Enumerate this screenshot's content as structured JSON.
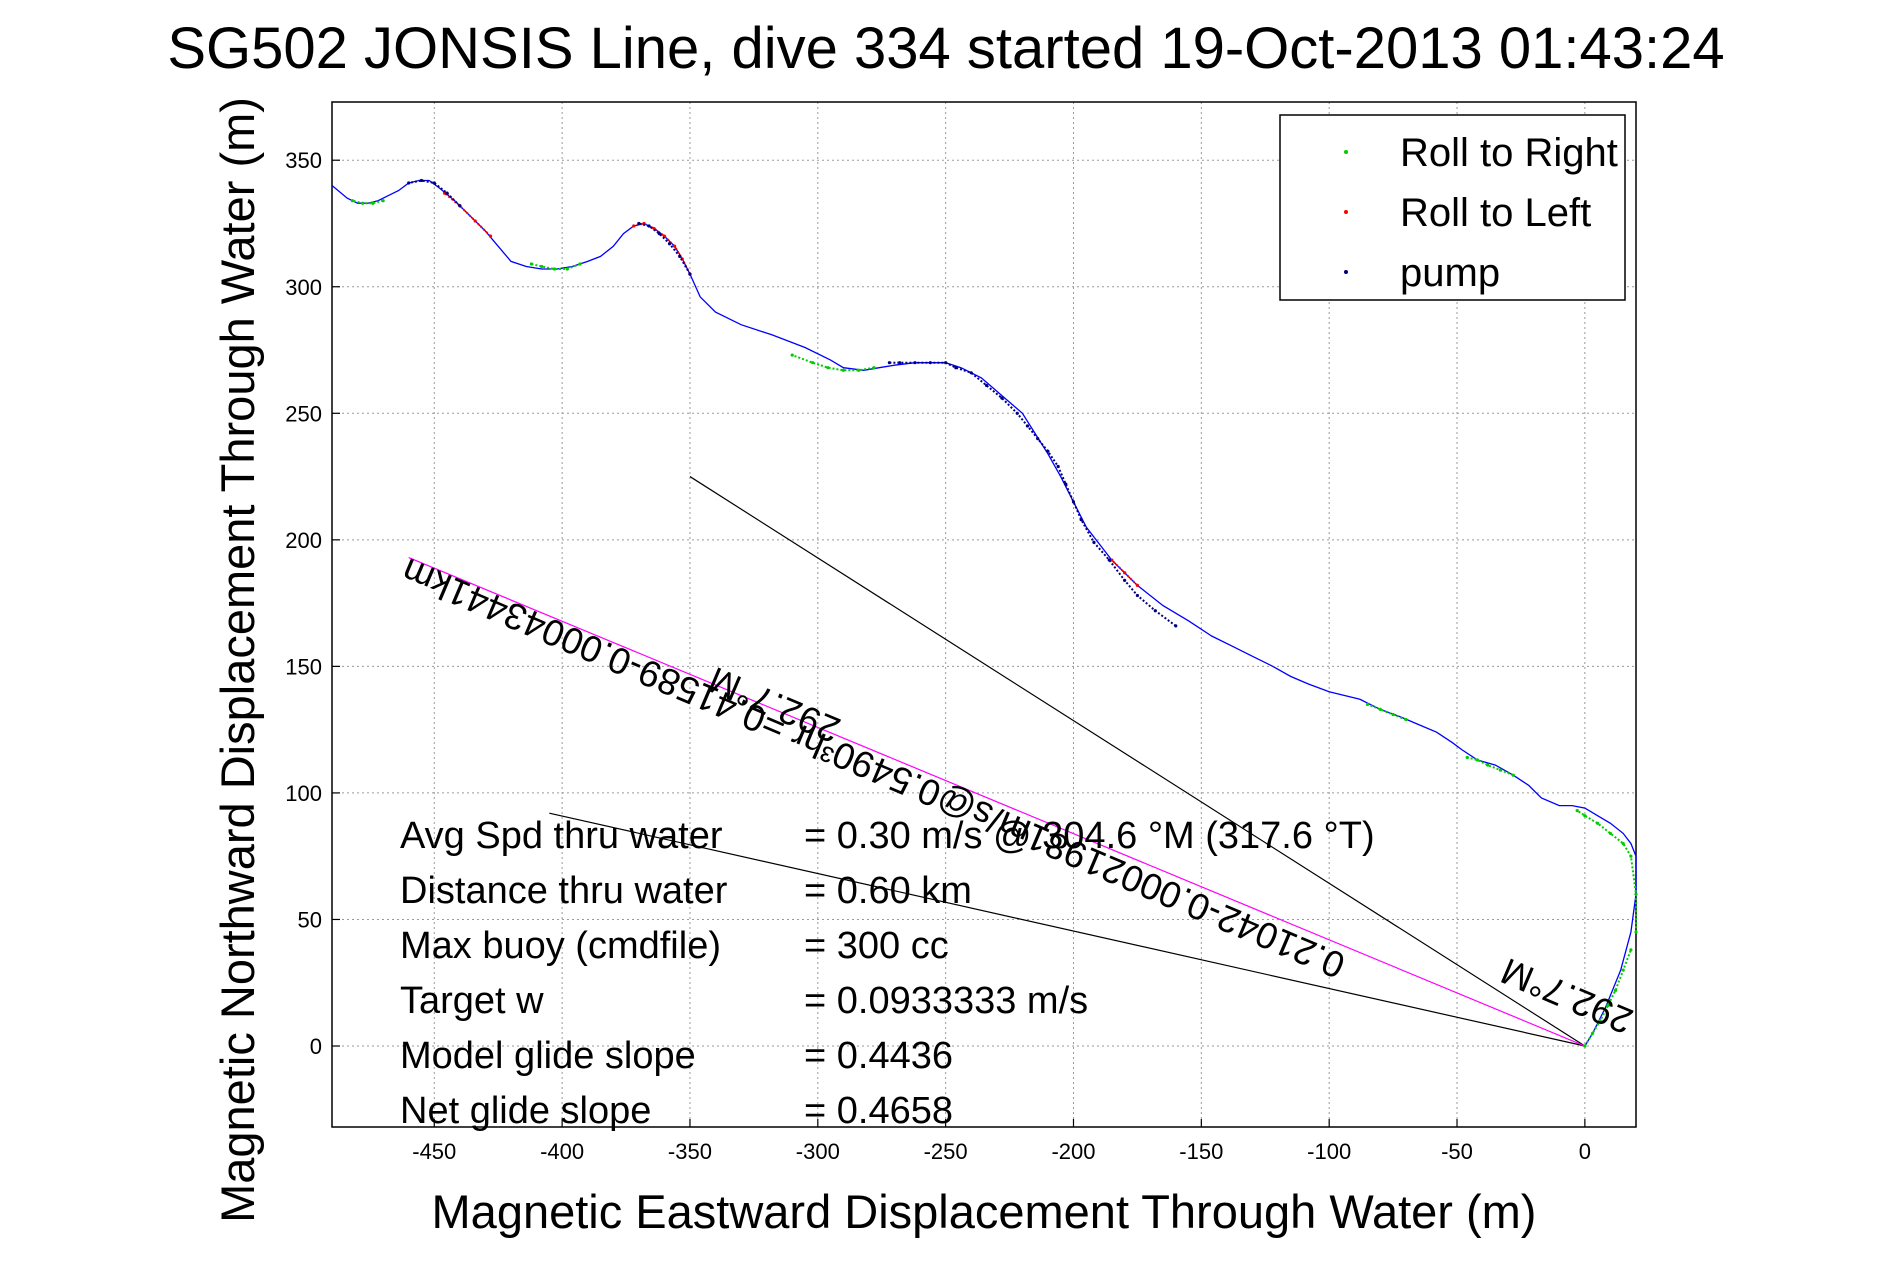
{
  "chart_data": {
    "type": "line",
    "title": "SG502 JONSIS Line, dive 334 started 19-Oct-2013 01:43:24",
    "xlabel": "Magnetic Eastward Displacement Through Water (m)",
    "ylabel": "Magnetic Northward Displacement Through Water (m)",
    "xlim": [
      -490,
      20
    ],
    "ylim": [
      -32,
      373
    ],
    "xticks": [
      -450,
      -400,
      -350,
      -300,
      -250,
      -200,
      -150,
      -100,
      -50,
      0
    ],
    "yticks": [
      0,
      50,
      100,
      150,
      200,
      250,
      300,
      350
    ],
    "grid": true,
    "legend_position": "top-right",
    "legend": [
      {
        "label": "Roll to Right",
        "color": "#00cc00"
      },
      {
        "label": "Roll to Left",
        "color": "#ff0000"
      },
      {
        "label": "pump",
        "color": "#000080"
      }
    ],
    "track": {
      "color": "#0000ff",
      "x": [
        0,
        3,
        8,
        14,
        18,
        20,
        20,
        18,
        15,
        10,
        5,
        0,
        -5,
        -10,
        -17,
        -22,
        -28,
        -35,
        -42,
        -48,
        -52,
        -58,
        -65,
        -72,
        -80,
        -88,
        -96,
        -100,
        -108,
        -115,
        -122,
        -130,
        -138,
        -146,
        -155,
        -165,
        -175,
        -185,
        -195,
        -200,
        -205,
        -210,
        -215,
        -220,
        -228,
        -236,
        -244,
        -250,
        -256,
        -262,
        -270,
        -276,
        -282,
        -290,
        -295,
        -305,
        -318,
        -330,
        -340,
        -346,
        -350,
        -353,
        -356,
        -360,
        -364,
        -368,
        -372,
        -376,
        -380,
        -385,
        -390,
        -396,
        -402,
        -408,
        -414,
        -420,
        -425,
        -430,
        -436,
        -442,
        -448,
        -452,
        -456,
        -460,
        -464,
        -468,
        -472,
        -476,
        -480,
        -484,
        -490
      ],
      "y": [
        0,
        5,
        15,
        30,
        45,
        60,
        75,
        80,
        84,
        88,
        91,
        94,
        95,
        95,
        98,
        103,
        107,
        111,
        113,
        117,
        120,
        124,
        127,
        130,
        133,
        137,
        139,
        140,
        143,
        146,
        150,
        154,
        158,
        162,
        168,
        174,
        182,
        192,
        205,
        215,
        225,
        234,
        242,
        250,
        257,
        264,
        268,
        270,
        270,
        270,
        269,
        268,
        267,
        268,
        271,
        276,
        281,
        285,
        290,
        296,
        305,
        311,
        316,
        320,
        323,
        325,
        324,
        321,
        316,
        312,
        310,
        308,
        307,
        307,
        308,
        310,
        316,
        322,
        328,
        334,
        339,
        342,
        342,
        341,
        338,
        336,
        334,
        333,
        333,
        335,
        340
      ]
    },
    "roll_right": [
      {
        "x": [
          20,
          20,
          18,
          15,
          10,
          5,
          0,
          -3
        ],
        "y": [
          45,
          60,
          75,
          80,
          84,
          88,
          91,
          93
        ]
      },
      {
        "x": [
          -28,
          -33,
          -38,
          -42,
          -46
        ],
        "y": [
          107,
          109,
          111,
          113,
          114
        ]
      },
      {
        "x": [
          -70,
          -75,
          -80,
          -85
        ],
        "y": [
          129,
          131,
          133,
          135
        ]
      },
      {
        "x": [
          -278,
          -284,
          -290,
          -296,
          -302,
          -310
        ],
        "y": [
          268,
          267,
          267,
          268,
          270,
          273
        ]
      },
      {
        "x": [
          -393,
          -398,
          -403,
          -408,
          -412
        ],
        "y": [
          309,
          307,
          307,
          308,
          309
        ]
      },
      {
        "x": [
          -470,
          -474,
          -478,
          -482
        ],
        "y": [
          334,
          333,
          333,
          334
        ]
      },
      {
        "x": [
          0,
          3,
          6,
          9,
          12,
          15,
          18
        ],
        "y": [
          0,
          5,
          10,
          16,
          22,
          30,
          38
        ]
      }
    ],
    "roll_left": [
      {
        "x": [
          -350,
          -353,
          -356,
          -360,
          -364,
          -368,
          -372
        ],
        "y": [
          305,
          311,
          316,
          320,
          323,
          325,
          324
        ]
      },
      {
        "x": [
          -428,
          -434,
          -440,
          -446
        ],
        "y": [
          320,
          326,
          332,
          337
        ]
      },
      {
        "x": [
          -175,
          -180,
          -185
        ],
        "y": [
          182,
          187,
          192
        ]
      }
    ],
    "pump": [
      {
        "x": [
          -160,
          -168,
          -175,
          -180,
          -186,
          -192,
          -197,
          -200,
          -203,
          -206,
          -210,
          -214,
          -218,
          -222,
          -228,
          -234,
          -240,
          -246,
          -250,
          -256,
          -262,
          -268,
          -272
        ],
        "y": [
          166,
          172,
          178,
          184,
          192,
          199,
          208,
          215,
          222,
          229,
          235,
          240,
          245,
          250,
          256,
          261,
          266,
          268,
          270,
          270,
          270,
          270,
          270
        ]
      },
      {
        "x": [
          -350,
          -354,
          -358,
          -362,
          -366,
          -370
        ],
        "y": [
          305,
          312,
          317,
          321,
          324,
          325
        ]
      },
      {
        "x": [
          -440,
          -445,
          -450,
          -455,
          -460
        ],
        "y": [
          332,
          337,
          341,
          342,
          341
        ]
      }
    ],
    "annotation_lines": [
      {
        "label": "current_heading_line",
        "color": "#000000",
        "x": [
          0,
          -350
        ],
        "y": [
          0,
          225
        ]
      },
      {
        "label": "heading_line",
        "color": "#000000",
        "x": [
          0,
          -405
        ],
        "y": [
          0,
          92
        ]
      },
      {
        "label": "model_line",
        "color": "#ff00ff",
        "x": [
          0,
          -460
        ],
        "y": [
          0,
          193
        ]
      }
    ],
    "rotated_annotations": [
      {
        "text": "0.21042-0.00021981m/s@0.5490³hr =0.41589-0.00043441km",
        "x": -460,
        "y": 193,
        "angle_deg": 23
      },
      {
        "text": "292.7°M",
        "x": -340,
        "y": 150,
        "angle_deg": 23
      },
      {
        "text": "292.7°M",
        "x": -30,
        "y": 35,
        "angle_deg": 23
      }
    ]
  },
  "stats": [
    {
      "label": "Avg Spd thru water",
      "value": "=  0.30 m/s @ 304.6 °M (317.6 °T)"
    },
    {
      "label": "Distance thru water",
      "value": "=  0.60 km"
    },
    {
      "label": "Max buoy (cmdfile)",
      "value": "= 300 cc"
    },
    {
      "label": "Target w",
      "value": "= 0.0933333 m/s"
    },
    {
      "label": "Model glide slope",
      "value": "= 0.4436"
    },
    {
      "label": "Net glide slope",
      "value": "= 0.4658"
    }
  ]
}
